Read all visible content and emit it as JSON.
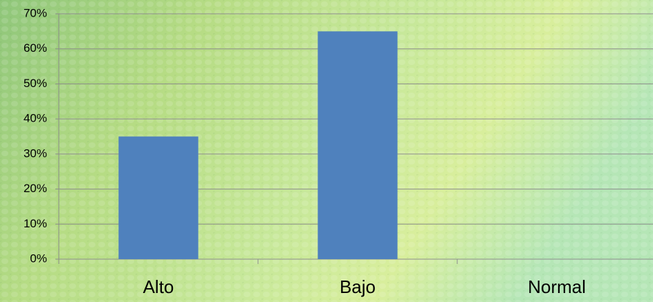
{
  "chart_data": {
    "type": "bar",
    "categories": [
      "Alto",
      "Bajo",
      "Normal"
    ],
    "values": [
      35,
      65,
      0
    ],
    "color": "#4f81bd",
    "ylim": [
      0,
      70
    ],
    "yticks": [
      {
        "value": 0,
        "label": "0%"
      },
      {
        "value": 10,
        "label": "10%"
      },
      {
        "value": 20,
        "label": "20%"
      },
      {
        "value": 30,
        "label": "30%"
      },
      {
        "value": 40,
        "label": "40%"
      },
      {
        "value": 50,
        "label": "50%"
      },
      {
        "value": 60,
        "label": "60%"
      },
      {
        "value": 70,
        "label": "70%"
      }
    ],
    "grid": true
  }
}
